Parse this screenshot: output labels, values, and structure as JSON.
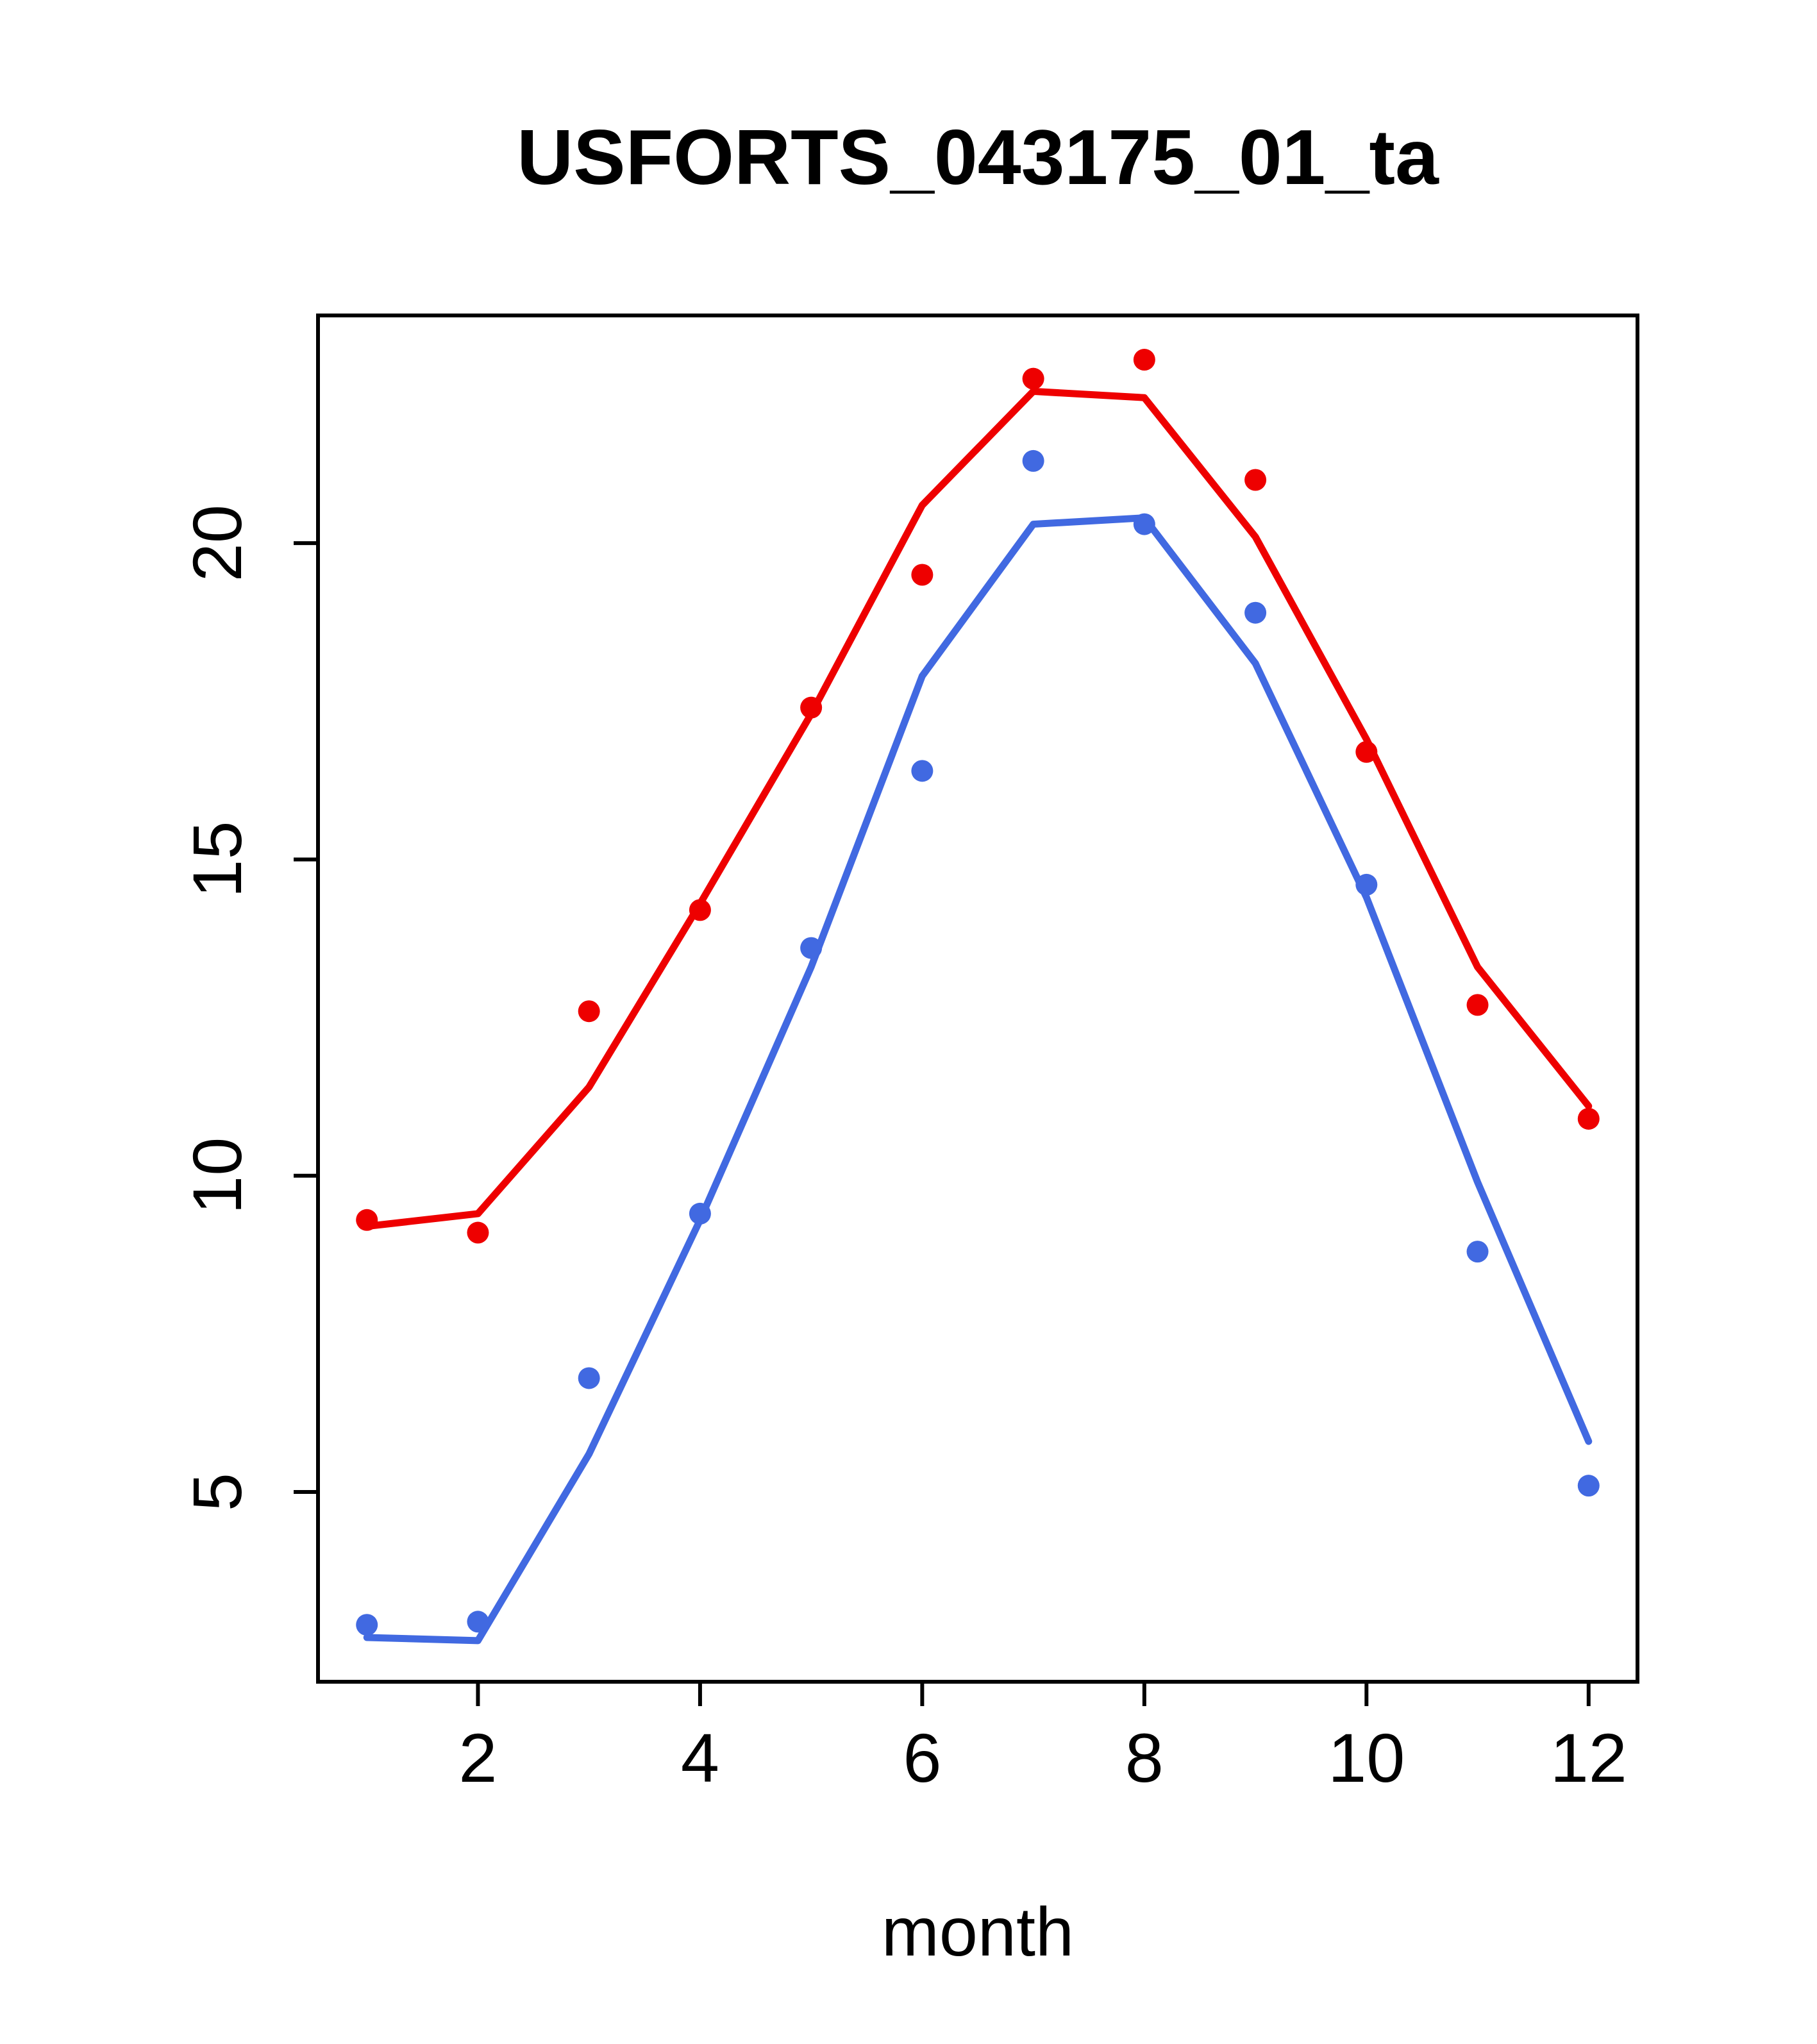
{
  "chart_data": {
    "type": "line",
    "title": "USFORTS_043175_01_ta",
    "xlabel": "month",
    "ylabel": "",
    "x": [
      1,
      2,
      3,
      4,
      5,
      6,
      7,
      8,
      9,
      10,
      11,
      12
    ],
    "xlim": [
      0.56,
      12.44
    ],
    "ylim": [
      2.0,
      23.6
    ],
    "x_ticks": [
      2,
      4,
      6,
      8,
      10,
      12
    ],
    "y_ticks": [
      5,
      10,
      15,
      20
    ],
    "grid": false,
    "legend": "none",
    "axis_color": "#000000",
    "series": [
      {
        "name": "red-series",
        "color": "#EE0000",
        "points": [
          9.3,
          9.1,
          12.6,
          14.2,
          17.4,
          19.5,
          22.6,
          22.9,
          21.0,
          16.7,
          12.7,
          10.9
        ],
        "line": [
          9.2,
          9.4,
          11.4,
          14.3,
          17.3,
          20.6,
          22.4,
          22.3,
          20.1,
          16.9,
          13.3,
          11.1
        ]
      },
      {
        "name": "blue-series",
        "color": "#4169E1",
        "points": [
          2.9,
          2.95,
          6.8,
          9.4,
          13.6,
          16.4,
          21.3,
          20.3,
          18.9,
          14.6,
          8.8,
          5.1
        ],
        "line": [
          2.7,
          2.65,
          5.6,
          9.3,
          13.3,
          17.9,
          20.3,
          20.4,
          18.1,
          14.4,
          9.9,
          5.8
        ]
      }
    ]
  }
}
